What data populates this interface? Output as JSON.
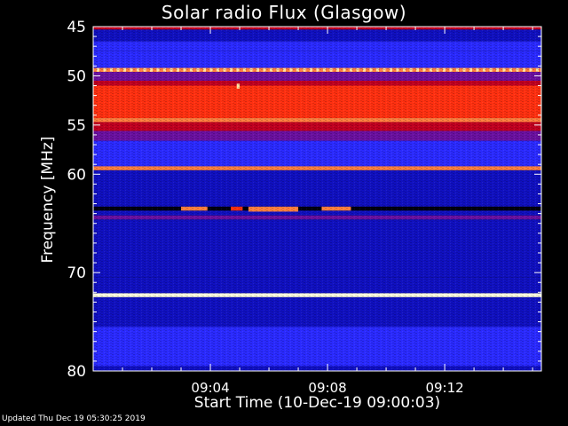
{
  "chart_data": {
    "type": "heatmap",
    "title": "Solar radio Flux (Glasgow)",
    "xlabel": "Start Time (10-Dec-19 09:00:03)",
    "ylabel": "Frequency [MHz]",
    "xlim_minutes": [
      0,
      15.3
    ],
    "ylim": [
      45,
      80
    ],
    "y_inverted": true,
    "y_ticks": [
      45,
      50,
      55,
      60,
      70,
      80
    ],
    "x_ticks": [
      {
        "minute": 4,
        "label": "09:04"
      },
      {
        "minute": 8,
        "label": "09:08"
      },
      {
        "minute": 12,
        "label": "09:12"
      }
    ],
    "colormap": [
      "#000010",
      "#1010c0",
      "#2a2aff",
      "#6a10a0",
      "#c00020",
      "#ff3010",
      "#ff8040",
      "#ffe0a0",
      "#ffffe0"
    ],
    "bands": [
      {
        "f0": 45.0,
        "f1": 45.3,
        "level": 4
      },
      {
        "f0": 45.3,
        "f1": 46.5,
        "level": 1
      },
      {
        "f0": 46.5,
        "f1": 47.5,
        "level": 2
      },
      {
        "f0": 47.5,
        "f1": 49.2,
        "level": 2
      },
      {
        "f0": 49.2,
        "f1": 49.6,
        "level": 6
      },
      {
        "f0": 49.6,
        "f1": 50.5,
        "level": 3
      },
      {
        "f0": 50.5,
        "f1": 51.0,
        "level": 4
      },
      {
        "f0": 51.0,
        "f1": 54.3,
        "level": 5
      },
      {
        "f0": 54.3,
        "f1": 54.7,
        "level": 6
      },
      {
        "f0": 54.7,
        "f1": 55.6,
        "level": 4
      },
      {
        "f0": 55.6,
        "f1": 56.6,
        "level": 3
      },
      {
        "f0": 56.6,
        "f1": 59.2,
        "level": 2
      },
      {
        "f0": 59.2,
        "f1": 59.6,
        "level": 6
      },
      {
        "f0": 59.6,
        "f1": 63.3,
        "level": 1
      },
      {
        "f0": 63.3,
        "f1": 63.7,
        "level": 0
      },
      {
        "f0": 63.7,
        "f1": 64.2,
        "level": 1
      },
      {
        "f0": 64.2,
        "f1": 64.6,
        "level": 3
      },
      {
        "f0": 64.6,
        "f1": 70.5,
        "level": 1
      },
      {
        "f0": 70.5,
        "f1": 72.1,
        "level": 1
      },
      {
        "f0": 72.1,
        "f1": 72.5,
        "level": 8
      },
      {
        "f0": 72.5,
        "f1": 75.5,
        "level": 1
      },
      {
        "f0": 75.5,
        "f1": 79.5,
        "level": 2
      },
      {
        "f0": 79.5,
        "f1": 80.0,
        "level": 1
      }
    ],
    "bursts": [
      {
        "t0": 3.0,
        "t1": 3.9,
        "f0": 63.3,
        "f1": 63.7,
        "level": 6
      },
      {
        "t0": 4.7,
        "t1": 5.1,
        "f0": 63.3,
        "f1": 63.7,
        "level": 5
      },
      {
        "t0": 5.3,
        "t1": 7.0,
        "f0": 63.3,
        "f1": 63.8,
        "level": 6
      },
      {
        "t0": 7.8,
        "t1": 8.8,
        "f0": 63.3,
        "f1": 63.7,
        "level": 6
      },
      {
        "t0": 4.9,
        "t1": 5.0,
        "f0": 50.8,
        "f1": 51.3,
        "level": 7
      }
    ]
  },
  "updated_text": "Updated Thu Dec 19 05:30:25 2019"
}
